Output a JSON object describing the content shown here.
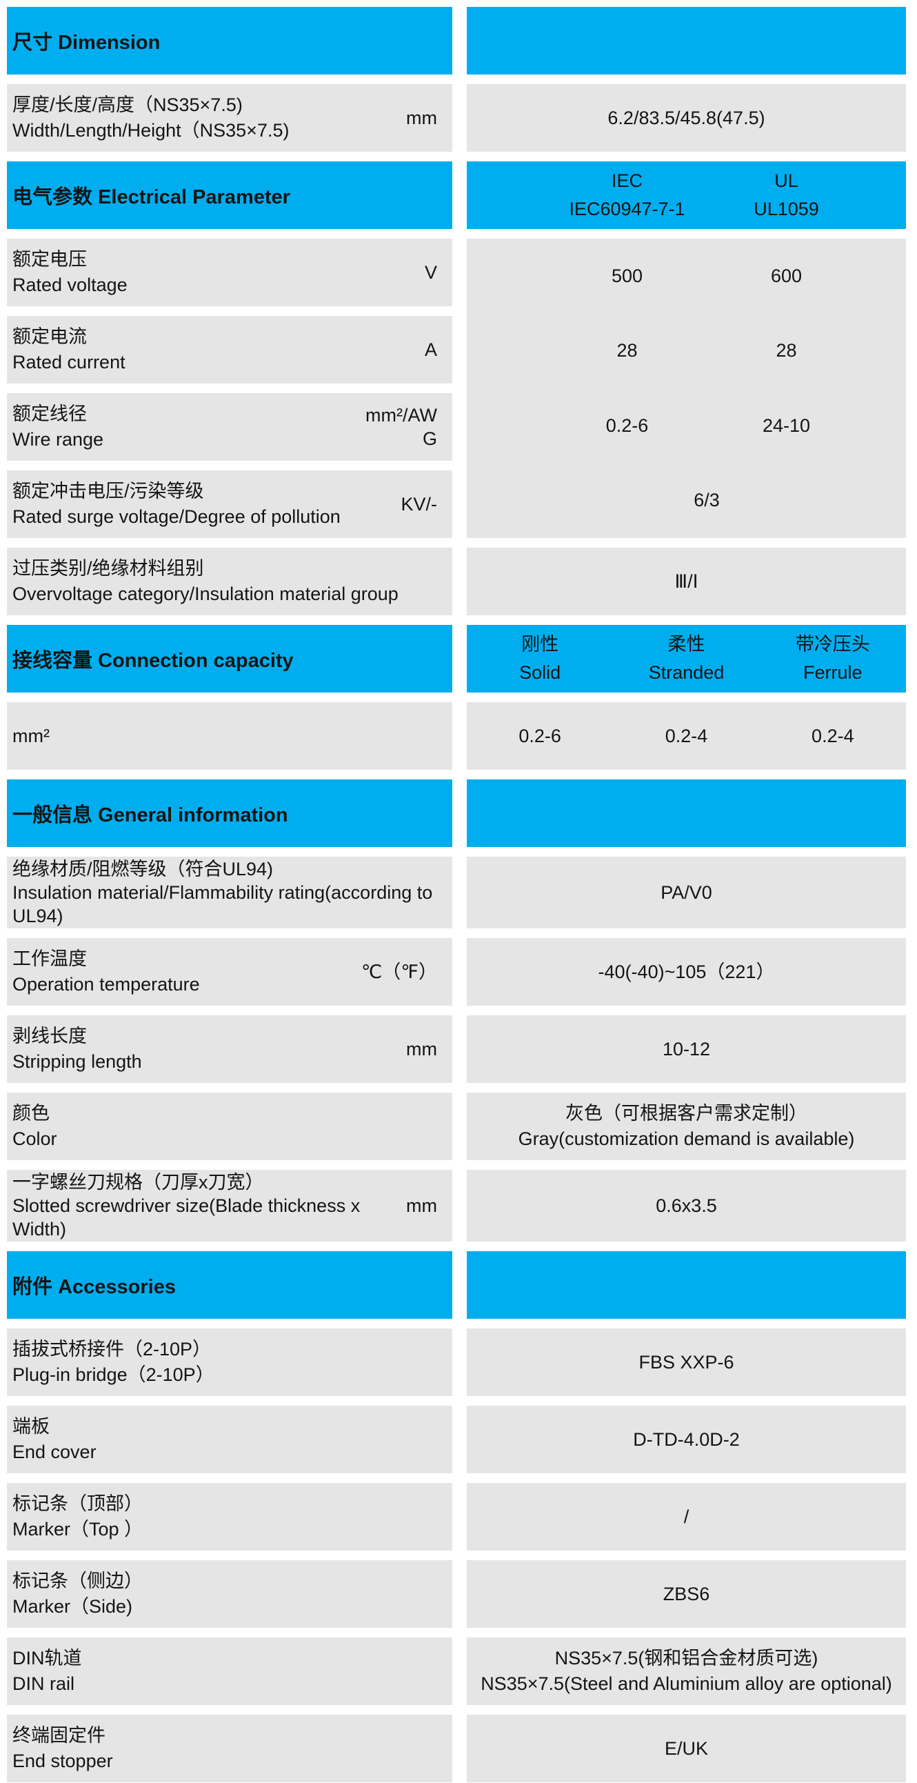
{
  "colors": {
    "accent": "#00AEEF",
    "row_bg": "#E6E5E5",
    "text": "#141414"
  },
  "sections": {
    "dimension": {
      "title": "尺寸 Dimension",
      "row": {
        "lines": [
          "厚度/长度/高度（NS35×7.5)",
          "Width/Length/Height（NS35×7.5)"
        ],
        "unit": "mm",
        "value": "6.2/83.5/45.8(47.5)"
      }
    },
    "electrical": {
      "title": "电气参数 Electrical Parameter",
      "standards": [
        {
          "name": "IEC",
          "ref": "IEC60947-7-1"
        },
        {
          "name": "UL",
          "ref": "UL1059"
        }
      ],
      "rows": [
        {
          "lines": [
            "额定电压",
            "Rated voltage"
          ],
          "unit": "V",
          "iec": "500",
          "ul": "600"
        },
        {
          "lines": [
            "额定电流",
            "Rated current"
          ],
          "unit": "A",
          "iec": "28",
          "ul": "28"
        },
        {
          "lines": [
            "额定线径",
            "Wire range"
          ],
          "unit": "mm²/AWG",
          "iec": "0.2-6",
          "ul": "24-10"
        },
        {
          "lines": [
            "额定冲击电压/污染等级",
            "Rated surge voltage/Degree of pollution"
          ],
          "unit": "KV/-",
          "value": "6/3"
        }
      ],
      "overvoltage": {
        "lines": [
          "过压类别/绝缘材料组别",
          "Overvoltage category/Insulation material group"
        ],
        "value": "Ⅲ/Ⅰ"
      }
    },
    "connection": {
      "title": "接线容量 Connection capacity",
      "columns": [
        {
          "zh": "刚性",
          "en": "Solid"
        },
        {
          "zh": "柔性",
          "en": "Stranded"
        },
        {
          "zh": "带冷压头",
          "en": "Ferrule"
        }
      ],
      "row": {
        "label": "mm²",
        "values": [
          "0.2-6",
          "0.2-4",
          "0.2-4"
        ]
      }
    },
    "general": {
      "title": "一般信息 General information",
      "rows": [
        {
          "lines": [
            "绝缘材质/阻燃等级（符合UL94)",
            "Insulation material/Flammability rating(according to",
            "UL94)"
          ],
          "value_lines": [
            "PA/V0"
          ]
        },
        {
          "lines": [
            "工作温度",
            "Operation temperature"
          ],
          "unit": "℃（℉）",
          "value_lines": [
            "-40(-40)~105（221）"
          ]
        },
        {
          "lines": [
            "剥线长度",
            "Stripping length"
          ],
          "unit": "mm",
          "value_lines": [
            "10-12"
          ]
        },
        {
          "lines": [
            "颜色",
            "Color"
          ],
          "value_lines": [
            "灰色（可根据客户需求定制）",
            "Gray(customization demand is available)"
          ]
        },
        {
          "lines": [
            "一字螺丝刀规格（刀厚x刀宽）",
            "Slotted screwdriver size(Blade thickness x",
            "Width)"
          ],
          "unit": "mm",
          "value_lines": [
            "0.6x3.5"
          ]
        }
      ]
    },
    "accessories": {
      "title": "附件 Accessories",
      "rows": [
        {
          "lines": [
            "插拔式桥接件（2-10P）",
            "Plug-in bridge（2-10P）"
          ],
          "value_lines": [
            "FBS XXP-6"
          ]
        },
        {
          "lines": [
            "端板",
            "End cover"
          ],
          "value_lines": [
            "D-TD-4.0D-2"
          ]
        },
        {
          "lines": [
            "标记条（顶部）",
            "Marker（Top ）"
          ],
          "value_lines": [
            "/"
          ]
        },
        {
          "lines": [
            "标记条（侧边）",
            "Marker（Side)"
          ],
          "value_lines": [
            "ZBS6"
          ]
        },
        {
          "lines": [
            "DIN轨道",
            "DIN rail"
          ],
          "value_lines": [
            "NS35×7.5(钢和铝合金材质可选)",
            "NS35×7.5(Steel and Aluminium alloy are optional)"
          ]
        },
        {
          "lines": [
            "终端固定件",
            "End stopper"
          ],
          "value_lines": [
            "E/UK"
          ]
        }
      ]
    }
  }
}
